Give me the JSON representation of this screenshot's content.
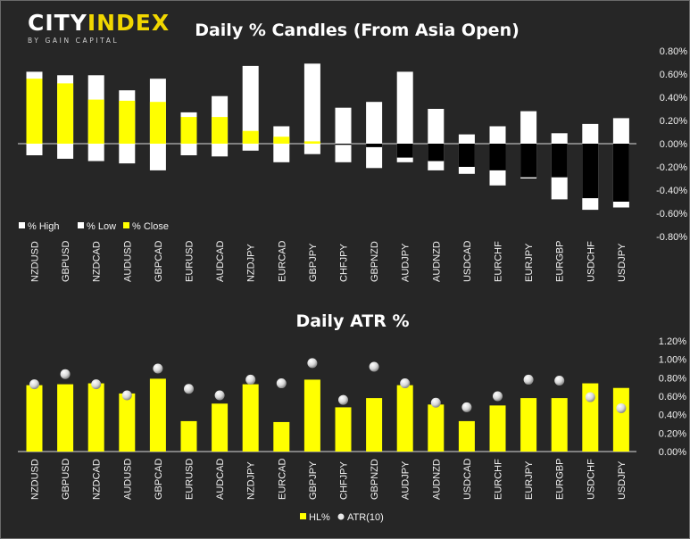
{
  "logo": {
    "part1": "CITY",
    "part2": "INDEX",
    "tagline": "BY GAIN CAPITAL"
  },
  "colors": {
    "background": "#262626",
    "yellow": "#ffff00",
    "white": "#ffffff",
    "black": "#000000",
    "text": "#f2f2f2"
  },
  "chart_data": [
    {
      "type": "bar",
      "title": "Daily % Candles (From Asia Open)",
      "categories": [
        "NZDUSD",
        "GBPUSD",
        "NZDCAD",
        "AUDUSD",
        "GBPCAD",
        "EURUSD",
        "AUDCAD",
        "NZDJPY",
        "EURCAD",
        "GBPJPY",
        "CHFJPY",
        "GBPNZD",
        "AUDJPY",
        "AUDNZD",
        "USDCAD",
        "EURCHF",
        "EURJPY",
        "EURGBP",
        "USDCHF",
        "USDJPY"
      ],
      "series": [
        {
          "name": "% High",
          "values": [
            0.62,
            0.59,
            0.59,
            0.46,
            0.56,
            0.27,
            0.41,
            0.67,
            0.15,
            0.69,
            0.31,
            0.36,
            0.62,
            0.3,
            0.08,
            0.15,
            0.28,
            0.09,
            0.17,
            0.22
          ]
        },
        {
          "name": "% Low",
          "values": [
            -0.1,
            -0.13,
            -0.15,
            -0.17,
            -0.23,
            -0.1,
            -0.11,
            -0.06,
            -0.16,
            -0.09,
            -0.16,
            -0.21,
            -0.16,
            -0.23,
            -0.26,
            -0.36,
            -0.3,
            -0.48,
            -0.57,
            -0.55
          ]
        },
        {
          "name": "% Close",
          "values": [
            0.56,
            0.52,
            0.38,
            0.37,
            0.36,
            0.23,
            0.23,
            0.11,
            0.06,
            0.02,
            -0.01,
            -0.03,
            -0.12,
            -0.15,
            -0.2,
            -0.23,
            -0.29,
            -0.29,
            -0.47,
            -0.5
          ]
        }
      ],
      "yticks": [
        "0.80%",
        "0.60%",
        "0.40%",
        "0.20%",
        "0.00%",
        "-0.20%",
        "-0.40%",
        "-0.60%",
        "-0.80%"
      ],
      "ylim": [
        -0.8,
        0.8
      ],
      "grid": false,
      "legend": "bottom-left"
    },
    {
      "type": "bar",
      "title": "Daily ATR %",
      "categories": [
        "NZDUSD",
        "GBPUSD",
        "NZDCAD",
        "AUDUSD",
        "GBPCAD",
        "EURUSD",
        "AUDCAD",
        "NZDJPY",
        "EURCAD",
        "GBPJPY",
        "CHFJPY",
        "GBPNZD",
        "AUDJPY",
        "AUDNZD",
        "USDCAD",
        "EURCHF",
        "EURJPY",
        "EURGBP",
        "USDCHF",
        "USDJPY"
      ],
      "series": [
        {
          "name": "HL%",
          "values": [
            0.72,
            0.73,
            0.74,
            0.63,
            0.79,
            0.33,
            0.52,
            0.73,
            0.32,
            0.78,
            0.48,
            0.58,
            0.72,
            0.51,
            0.33,
            0.5,
            0.58,
            0.58,
            0.74,
            0.69
          ]
        },
        {
          "name": "ATR(10)",
          "values": [
            0.73,
            0.84,
            0.73,
            0.61,
            0.9,
            0.68,
            0.61,
            0.78,
            0.74,
            0.96,
            0.56,
            0.92,
            0.74,
            0.53,
            0.48,
            0.6,
            0.78,
            0.77,
            0.59,
            0.47
          ]
        }
      ],
      "yticks": [
        "1.20%",
        "1.00%",
        "0.80%",
        "0.60%",
        "0.40%",
        "0.20%",
        "0.00%"
      ],
      "ylim": [
        0,
        1.2
      ],
      "grid": false,
      "legend": "bottom-center"
    }
  ]
}
